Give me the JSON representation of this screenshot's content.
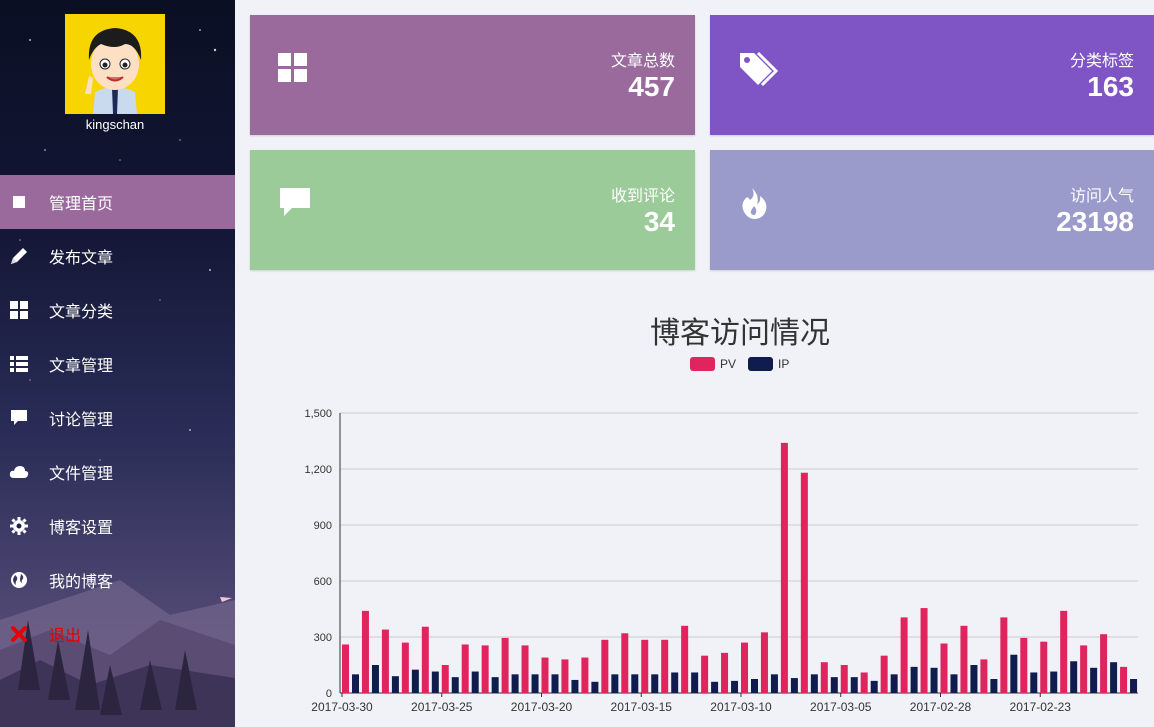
{
  "user": {
    "name": "kingschan"
  },
  "nav": {
    "items": [
      {
        "label": "管理首页",
        "icon": "square-icon"
      },
      {
        "label": "发布文章",
        "icon": "pencil-icon"
      },
      {
        "label": "文章分类",
        "icon": "grid-icon"
      },
      {
        "label": "文章管理",
        "icon": "list-icon"
      },
      {
        "label": "讨论管理",
        "icon": "comment-icon"
      },
      {
        "label": "文件管理",
        "icon": "cloud-icon"
      },
      {
        "label": "博客设置",
        "icon": "gear-icon"
      },
      {
        "label": "我的博客",
        "icon": "globe-icon"
      },
      {
        "label": "退出",
        "icon": "close-icon"
      }
    ]
  },
  "stats": {
    "articles": {
      "label": "文章总数",
      "value": "457",
      "color": "#9a6a9c",
      "icon": "grid-icon"
    },
    "tags": {
      "label": "分类标签",
      "value": "163",
      "color": "#7f55c6",
      "icon": "tags-icon"
    },
    "comments": {
      "label": "收到评论",
      "value": "34",
      "color": "#9bcb98",
      "icon": "comment-icon"
    },
    "visits": {
      "label": "访问人气",
      "value": "23198",
      "color": "#9a9acb",
      "icon": "fire-icon"
    }
  },
  "chart_data": {
    "type": "bar",
    "title": "博客访问情况",
    "ylim": [
      0,
      1500
    ],
    "yticks": [
      "0",
      "300",
      "600",
      "900",
      "1,200",
      "1,500"
    ],
    "xtick_labels": [
      "2017-03-30",
      "2017-03-25",
      "2017-03-20",
      "2017-03-15",
      "2017-03-10",
      "2017-03-05",
      "2017-02-28",
      "2017-02-23"
    ],
    "legend_position": "top-center",
    "grid": true,
    "series": [
      {
        "name": "PV",
        "color": "#e0245e",
        "values": [
          260,
          440,
          340,
          270,
          355,
          150,
          260,
          255,
          295,
          255,
          190,
          180,
          190,
          285,
          320,
          285,
          285,
          360,
          200,
          215,
          270,
          325,
          1340,
          1180,
          165,
          150,
          110,
          200,
          405,
          455,
          265,
          360,
          180,
          405,
          295,
          275,
          440,
          255,
          315,
          140
        ]
      },
      {
        "name": "IP",
        "color": "#0f1c4d",
        "values": [
          100,
          150,
          90,
          125,
          115,
          85,
          115,
          85,
          100,
          100,
          100,
          70,
          60,
          100,
          100,
          100,
          110,
          110,
          60,
          65,
          75,
          100,
          80,
          100,
          85,
          85,
          65,
          100,
          140,
          135,
          100,
          150,
          75,
          205,
          110,
          115,
          170,
          135,
          165,
          75
        ]
      }
    ]
  }
}
